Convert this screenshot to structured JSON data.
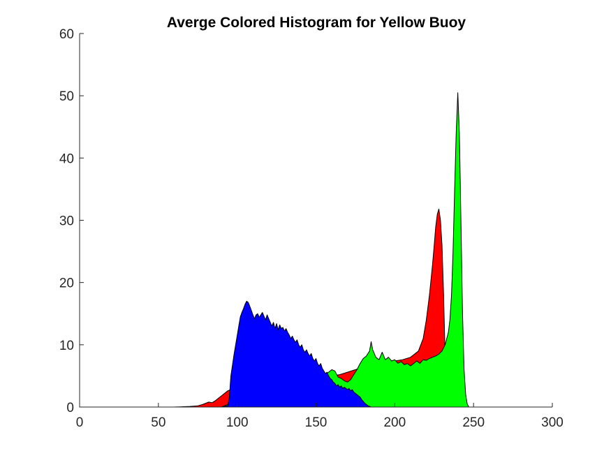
{
  "chart_data": {
    "type": "area",
    "title": "Averge Colored Histogram for Yellow Buoy",
    "xlabel": "",
    "ylabel": "",
    "xlim": [
      0,
      300
    ],
    "ylim": [
      0,
      60
    ],
    "xticks": [
      0,
      50,
      100,
      150,
      200,
      250,
      300
    ],
    "yticks": [
      0,
      10,
      20,
      30,
      40,
      50,
      60
    ],
    "grid": false,
    "legend": "none",
    "axis_color": "#262626",
    "outline_color": "#000000",
    "series": [
      {
        "color": "#ff0000",
        "x": [
          0,
          60,
          70,
          75,
          78,
          80,
          82,
          84,
          86,
          88,
          90,
          92,
          94,
          96,
          98,
          100,
          102,
          104,
          106,
          108,
          110,
          115,
          120,
          125,
          130,
          135,
          140,
          145,
          150,
          155,
          160,
          165,
          170,
          175,
          180,
          185,
          190,
          195,
          200,
          205,
          210,
          215,
          218,
          220,
          222,
          224,
          225,
          226,
          227,
          228,
          229,
          230,
          231,
          232,
          233,
          234,
          235,
          236,
          238,
          240,
          242,
          245,
          255
        ],
        "y": [
          0,
          0,
          0.1,
          0.2,
          0.4,
          0.6,
          0.8,
          0.7,
          1.0,
          1.4,
          1.8,
          2.2,
          2.6,
          2.8,
          3.0,
          3.2,
          3.4,
          3.6,
          3.7,
          3.8,
          3.9,
          4.0,
          4.0,
          4.0,
          4.1,
          4.2,
          4.3,
          4.4,
          4.6,
          4.8,
          5.0,
          5.2,
          5.6,
          6.0,
          6.4,
          6.8,
          7.0,
          7.2,
          7.4,
          7.6,
          8.0,
          9.0,
          11.0,
          14.0,
          18.0,
          23.0,
          26.0,
          29.0,
          31.0,
          31.8,
          30.0,
          26.0,
          18.0,
          8.0,
          3.0,
          1.0,
          0.5,
          0.2,
          0.1,
          0,
          0,
          0,
          0
        ]
      },
      {
        "color": "#00ff00",
        "x": [
          0,
          90,
          95,
          100,
          105,
          110,
          115,
          120,
          125,
          130,
          135,
          140,
          145,
          150,
          155,
          158,
          160,
          162,
          164,
          166,
          168,
          170,
          172,
          174,
          176,
          178,
          180,
          182,
          184,
          185,
          186,
          188,
          190,
          192,
          194,
          196,
          198,
          200,
          202,
          204,
          206,
          208,
          210,
          212,
          214,
          216,
          218,
          220,
          222,
          224,
          226,
          228,
          230,
          232,
          234,
          235,
          236,
          237,
          238,
          239,
          240,
          241,
          242,
          243,
          244,
          245,
          246,
          247,
          250,
          255
        ],
        "y": [
          0,
          0,
          0.5,
          1.0,
          1.5,
          2.0,
          2.5,
          3.0,
          3.4,
          3.7,
          4.0,
          4.2,
          4.4,
          4.6,
          5.0,
          5.6,
          6.0,
          5.8,
          4.8,
          4.6,
          4.2,
          4.0,
          4.4,
          5.2,
          6.0,
          7.0,
          7.8,
          8.2,
          9.0,
          10.5,
          9.2,
          8.0,
          7.6,
          8.8,
          7.6,
          8.0,
          7.4,
          7.6,
          7.0,
          7.3,
          6.8,
          7.0,
          6.6,
          7.0,
          7.4,
          7.0,
          7.6,
          7.5,
          7.8,
          8.0,
          8.2,
          8.5,
          9.0,
          10.0,
          12.0,
          14.0,
          18.0,
          25.0,
          35.0,
          44.0,
          50.5,
          44.0,
          30.0,
          15.0,
          6.0,
          2.0,
          0.5,
          0,
          0,
          0
        ]
      },
      {
        "color": "#0000ff",
        "x": [
          0,
          90,
          94,
          95,
          96,
          98,
          100,
          101,
          102,
          103,
          104,
          105,
          106,
          107,
          108,
          109,
          110,
          111,
          112,
          113,
          114,
          115,
          116,
          117,
          118,
          119,
          120,
          121,
          122,
          123,
          124,
          125,
          126,
          127,
          128,
          129,
          130,
          131,
          132,
          133,
          134,
          135,
          136,
          137,
          138,
          139,
          140,
          141,
          142,
          143,
          144,
          145,
          146,
          147,
          148,
          149,
          150,
          151,
          152,
          153,
          154,
          155,
          156,
          157,
          158,
          159,
          160,
          161,
          162,
          163,
          164,
          165,
          166,
          167,
          168,
          169,
          170,
          171,
          172,
          173,
          174,
          175,
          176,
          177,
          178,
          179,
          180,
          181,
          182,
          183,
          184,
          185,
          190,
          255
        ],
        "y": [
          0,
          0,
          0.2,
          1.5,
          5.0,
          8.5,
          11.5,
          13.0,
          14.5,
          15.2,
          15.8,
          16.5,
          17.0,
          16.8,
          16.2,
          15.5,
          14.8,
          14.2,
          14.8,
          15.0,
          14.4,
          14.8,
          15.2,
          14.6,
          14.0,
          14.8,
          14.2,
          13.6,
          13.0,
          13.6,
          12.6,
          13.4,
          12.4,
          13.2,
          12.6,
          12.8,
          12.2,
          12.6,
          12.0,
          11.6,
          11.0,
          11.4,
          10.8,
          10.4,
          10.8,
          10.0,
          9.6,
          10.0,
          9.2,
          8.8,
          9.2,
          8.6,
          8.2,
          8.6,
          7.8,
          7.4,
          7.8,
          7.0,
          6.6,
          7.0,
          6.2,
          5.8,
          5.4,
          5.6,
          5.0,
          4.6,
          4.4,
          4.0,
          3.8,
          3.4,
          3.6,
          3.2,
          3.4,
          3.0,
          3.2,
          3.0,
          2.8,
          3.0,
          2.6,
          2.8,
          2.4,
          2.2,
          2.0,
          1.8,
          1.6,
          1.2,
          0.9,
          0.6,
          0.4,
          0.2,
          0.1,
          0,
          0,
          0
        ]
      }
    ]
  }
}
